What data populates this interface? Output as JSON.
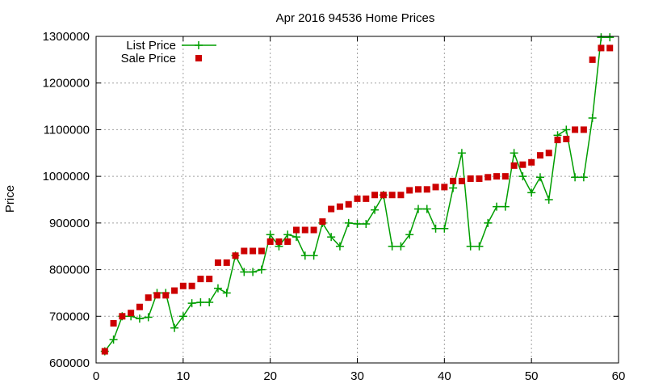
{
  "chart_data": {
    "type": "line",
    "title": "Apr 2016 94536 Home Prices",
    "xlabel": "",
    "ylabel": "Price",
    "xlim": [
      0,
      60
    ],
    "ylim": [
      600000,
      1300000
    ],
    "x_ticks": [
      "0",
      "10",
      "20",
      "30",
      "40",
      "50",
      "60"
    ],
    "y_ticks": [
      "600000",
      "700000",
      "800000",
      "900000",
      "1000000",
      "1100000",
      "1200000",
      "1300000"
    ],
    "grid": true,
    "legend_position": "top-left",
    "series": [
      {
        "name": "List Price",
        "style": "line-with-plus-markers",
        "color": "#009e00",
        "x": [
          1,
          2,
          3,
          4,
          5,
          6,
          7,
          8,
          9,
          10,
          11,
          12,
          13,
          14,
          15,
          16,
          17,
          18,
          19,
          20,
          21,
          22,
          23,
          24,
          25,
          26,
          27,
          28,
          29,
          30,
          31,
          32,
          33,
          34,
          35,
          36,
          37,
          38,
          39,
          40,
          41,
          42,
          43,
          44,
          45,
          46,
          47,
          48,
          49,
          50,
          51,
          52,
          53,
          54,
          55,
          56,
          57,
          58,
          59
        ],
        "values": [
          625000,
          650000,
          700000,
          700000,
          695000,
          698000,
          750000,
          750000,
          675000,
          700000,
          728000,
          730000,
          730000,
          760000,
          750000,
          830000,
          795000,
          795000,
          800000,
          875000,
          850000,
          875000,
          870000,
          830000,
          830000,
          900000,
          870000,
          850000,
          900000,
          898000,
          898000,
          928000,
          960000,
          850000,
          850000,
          875000,
          930000,
          930000,
          888000,
          888000,
          975000,
          1050000,
          850000,
          850000,
          900000,
          935000,
          935000,
          1050000,
          1000000,
          965000,
          998000,
          950000,
          1088000,
          1100000,
          998000,
          998000,
          1125000,
          1298000,
          1298000
        ]
      },
      {
        "name": "Sale Price",
        "style": "square-markers",
        "color": "#cc0000",
        "x": [
          1,
          2,
          3,
          4,
          5,
          6,
          7,
          8,
          9,
          10,
          11,
          12,
          13,
          14,
          15,
          16,
          17,
          18,
          19,
          20,
          21,
          22,
          23,
          24,
          25,
          26,
          27,
          28,
          29,
          30,
          31,
          32,
          33,
          34,
          35,
          36,
          37,
          38,
          39,
          40,
          41,
          42,
          43,
          44,
          45,
          46,
          47,
          48,
          49,
          50,
          51,
          52,
          53,
          54,
          55,
          56,
          57,
          58,
          59
        ],
        "values": [
          625000,
          685000,
          700000,
          707000,
          720000,
          740000,
          745000,
          745000,
          755000,
          765000,
          765000,
          780000,
          780000,
          815000,
          815000,
          830000,
          840000,
          840000,
          840000,
          860000,
          860000,
          860000,
          885000,
          885000,
          885000,
          903000,
          930000,
          935000,
          940000,
          952000,
          952000,
          960000,
          960000,
          960000,
          960000,
          970000,
          972000,
          972000,
          977000,
          977000,
          990000,
          990000,
          995000,
          995000,
          998000,
          1000000,
          1000000,
          1023000,
          1025000,
          1030000,
          1045000,
          1050000,
          1078000,
          1080000,
          1100000,
          1100000,
          1250000,
          1275000,
          1275000
        ]
      }
    ]
  }
}
